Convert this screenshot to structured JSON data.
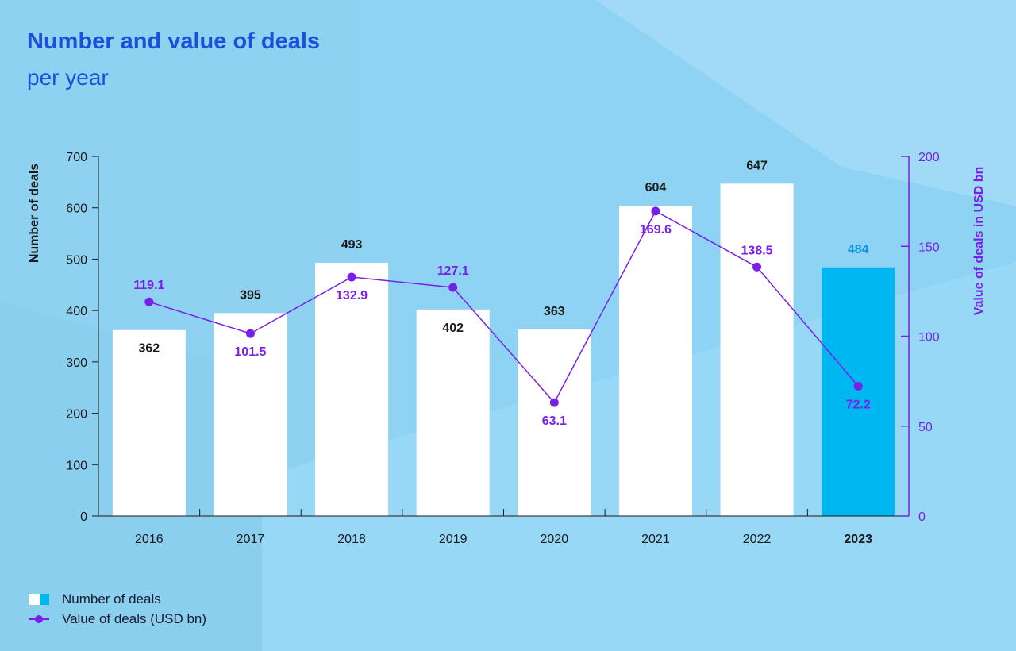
{
  "title": "Number and value of deals",
  "subtitle": "per year",
  "colors": {
    "bar": "#ffffff",
    "bar_highlight": "#00b6f1",
    "line": "#7a1fe8",
    "left_axis": "#1a1a1a",
    "highlight_label": "#1296e0"
  },
  "legend": {
    "bars": "Number of deals",
    "line": "Value of deals (USD bn)"
  },
  "chart_data": {
    "type": "bar+line",
    "categories": [
      "2016",
      "2017",
      "2018",
      "2019",
      "2020",
      "2021",
      "2022",
      "2023"
    ],
    "highlight_category": "2023",
    "series": [
      {
        "name": "Number of deals",
        "type": "bar",
        "axis": "left",
        "values": [
          362,
          395,
          493,
          402,
          363,
          604,
          647,
          484
        ],
        "label_position": [
          "inside",
          "above",
          "above",
          "inside",
          "above",
          "above",
          "above",
          "above"
        ]
      },
      {
        "name": "Value of deals (USD bn)",
        "type": "line",
        "axis": "right",
        "values": [
          119.1,
          101.5,
          132.9,
          127.1,
          63.1,
          169.6,
          138.5,
          72.2
        ],
        "label_position": [
          "above",
          "below",
          "below",
          "above",
          "below",
          "below",
          "above",
          "below"
        ]
      }
    ],
    "ylabel": "Number of deals",
    "ylim": [
      0,
      700
    ],
    "yticks": [
      0,
      100,
      200,
      300,
      400,
      500,
      600,
      700
    ],
    "y2label": "Value of deals in USD bn",
    "y2lim": [
      0,
      200
    ],
    "y2ticks": [
      0,
      50,
      100,
      150,
      200
    ],
    "grid": false,
    "legend_position": "bottom-left"
  }
}
